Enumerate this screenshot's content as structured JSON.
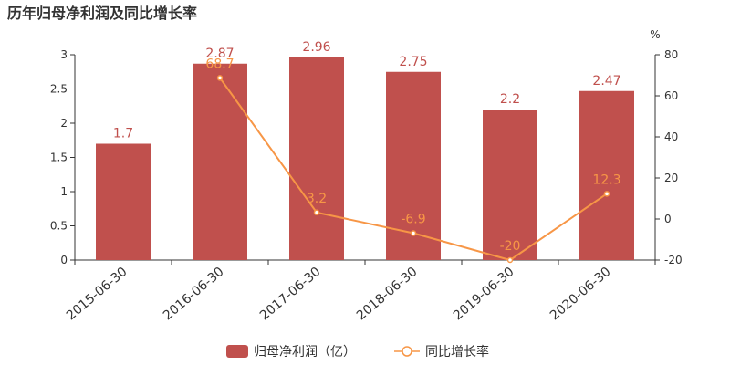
{
  "chart_data": {
    "type": "bar",
    "title": "历年归母净利润及同比增长率",
    "categories": [
      "2015-06-30",
      "2016-06-30",
      "2017-06-30",
      "2018-06-30",
      "2019-06-30",
      "2020-06-30"
    ],
    "series": [
      {
        "name": "归母净利润（亿）",
        "type": "bar",
        "axis": "left",
        "values": [
          1.7,
          2.87,
          2.96,
          2.75,
          2.2,
          2.47
        ],
        "labels": [
          "1.7",
          "2.87",
          "2.96",
          "2.75",
          "2.2",
          "2.47"
        ]
      },
      {
        "name": "同比增长率",
        "type": "line",
        "axis": "right",
        "values": [
          null,
          68.7,
          3.2,
          -6.9,
          -20,
          12.3
        ],
        "labels": [
          "",
          "68.7",
          "3.2",
          "-6.9",
          "-20",
          "12.3"
        ]
      }
    ],
    "y_left": {
      "min": 0,
      "max": 3,
      "ticks": [
        "0",
        "0.5",
        "1",
        "1.5",
        "2",
        "2.5",
        "3"
      ]
    },
    "y_right": {
      "min": -20,
      "max": 80,
      "unit": "%",
      "ticks": [
        "-20",
        "0",
        "20",
        "40",
        "60",
        "80"
      ]
    },
    "legend_position": "bottom-center",
    "grid": false
  },
  "colors": {
    "bar": "#c0504d",
    "line": "#f79646",
    "axis": "#333333",
    "text": "#333333"
  }
}
